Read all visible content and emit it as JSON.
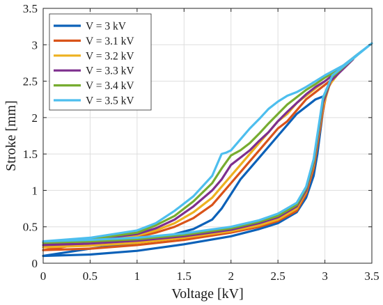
{
  "chart_data": {
    "type": "line",
    "title": "",
    "xlabel": "Voltage [kV]",
    "ylabel": "Stroke [mm]",
    "xlim": [
      0,
      3.5
    ],
    "ylim": [
      0,
      3.5
    ],
    "xticks": [
      0,
      0.5,
      1,
      1.5,
      2,
      2.5,
      3,
      3.5
    ],
    "yticks": [
      0,
      0.5,
      1,
      1.5,
      2,
      2.5,
      3,
      3.5
    ],
    "xtick_labels": [
      "0",
      "0.5",
      "1",
      "1.5",
      "2",
      "2.5",
      "3",
      "3.5"
    ],
    "ytick_labels": [
      "0",
      "0.5",
      "1",
      "1.5",
      "2",
      "2.5",
      "3",
      "3.5"
    ],
    "grid": true,
    "legend_position": "top-left",
    "series": [
      {
        "name": "V = 3 kV",
        "color": "#0c61b8",
        "x": [
          0,
          0.5,
          1,
          1.5,
          2,
          2.3,
          2.5,
          2.7,
          2.8,
          2.88,
          2.92,
          2.95,
          2.98,
          3.0,
          2.9,
          2.8,
          2.7,
          2.6,
          2.5,
          2.4,
          2.3,
          2.2,
          2.1,
          2.0,
          1.9,
          1.8,
          1.6,
          1.4,
          1.2,
          1.0,
          0.5,
          0
        ],
        "y": [
          0.1,
          0.12,
          0.17,
          0.26,
          0.37,
          0.47,
          0.55,
          0.7,
          0.9,
          1.2,
          1.5,
          1.8,
          2.1,
          2.3,
          2.25,
          2.15,
          2.05,
          1.9,
          1.75,
          1.6,
          1.45,
          1.3,
          1.15,
          0.95,
          0.75,
          0.6,
          0.47,
          0.4,
          0.33,
          0.28,
          0.2,
          0.1
        ]
      },
      {
        "name": "V = 3.1 kV",
        "color": "#d95319",
        "x": [
          0,
          0.5,
          1,
          1.5,
          2,
          2.3,
          2.5,
          2.7,
          2.8,
          2.88,
          2.93,
          2.98,
          3.03,
          3.1,
          3.0,
          2.9,
          2.8,
          2.7,
          2.6,
          2.5,
          2.4,
          2.3,
          2.2,
          2.1,
          2.0,
          1.9,
          1.8,
          1.6,
          1.4,
          1.2,
          1.0,
          0.5,
          0
        ],
        "y": [
          0.18,
          0.2,
          0.25,
          0.32,
          0.42,
          0.5,
          0.58,
          0.72,
          0.95,
          1.3,
          1.7,
          2.1,
          2.4,
          2.55,
          2.45,
          2.35,
          2.25,
          2.1,
          1.95,
          1.85,
          1.7,
          1.55,
          1.4,
          1.25,
          1.1,
          0.95,
          0.8,
          0.62,
          0.5,
          0.42,
          0.36,
          0.28,
          0.18
        ]
      },
      {
        "name": "V = 3.2 kV",
        "color": "#edb120",
        "x": [
          0,
          0.5,
          1,
          1.5,
          2,
          2.3,
          2.5,
          2.7,
          2.8,
          2.88,
          2.93,
          2.98,
          3.05,
          3.2,
          3.1,
          3.0,
          2.9,
          2.8,
          2.7,
          2.6,
          2.5,
          2.4,
          2.3,
          2.2,
          2.1,
          2.0,
          1.9,
          1.8,
          1.6,
          1.4,
          1.2,
          1.0,
          0.5,
          0
        ],
        "y": [
          0.22,
          0.24,
          0.28,
          0.35,
          0.44,
          0.52,
          0.6,
          0.75,
          0.98,
          1.35,
          1.75,
          2.15,
          2.45,
          2.7,
          2.6,
          2.5,
          2.4,
          2.3,
          2.2,
          2.05,
          1.95,
          1.8,
          1.65,
          1.5,
          1.35,
          1.2,
          1.05,
          0.9,
          0.7,
          0.55,
          0.45,
          0.38,
          0.3,
          0.22
        ]
      },
      {
        "name": "V = 3.3 kV",
        "color": "#7e2f8e",
        "x": [
          0,
          0.5,
          1,
          1.5,
          2,
          2.3,
          2.5,
          2.7,
          2.8,
          2.88,
          2.93,
          2.98,
          3.06,
          3.3,
          3.2,
          3.1,
          3.0,
          2.9,
          2.8,
          2.7,
          2.6,
          2.5,
          2.4,
          2.3,
          2.2,
          2.1,
          2.0,
          1.9,
          1.8,
          1.6,
          1.4,
          1.2,
          1.0,
          0.5,
          0
        ],
        "y": [
          0.25,
          0.27,
          0.31,
          0.37,
          0.46,
          0.55,
          0.63,
          0.78,
          1.0,
          1.38,
          1.78,
          2.2,
          2.5,
          2.8,
          2.7,
          2.6,
          2.5,
          2.42,
          2.32,
          2.2,
          2.08,
          1.95,
          1.8,
          1.68,
          1.55,
          1.45,
          1.35,
          1.15,
          1.0,
          0.78,
          0.6,
          0.48,
          0.4,
          0.32,
          0.25
        ]
      },
      {
        "name": "V = 3.4 kV",
        "color": "#77ac30",
        "x": [
          0,
          0.5,
          1,
          1.5,
          2,
          2.3,
          2.5,
          2.7,
          2.8,
          2.88,
          2.93,
          2.98,
          3.07,
          3.4,
          3.3,
          3.2,
          3.1,
          3.0,
          2.9,
          2.8,
          2.7,
          2.6,
          2.5,
          2.4,
          2.3,
          2.2,
          2.1,
          2.0,
          1.9,
          1.8,
          1.6,
          1.4,
          1.2,
          1.0,
          0.5,
          0
        ],
        "y": [
          0.28,
          0.3,
          0.33,
          0.39,
          0.48,
          0.57,
          0.65,
          0.8,
          1.03,
          1.4,
          1.82,
          2.25,
          2.55,
          2.92,
          2.82,
          2.72,
          2.62,
          2.55,
          2.46,
          2.38,
          2.28,
          2.18,
          2.05,
          1.92,
          1.78,
          1.65,
          1.55,
          1.48,
          1.3,
          1.1,
          0.85,
          0.65,
          0.52,
          0.42,
          0.33,
          0.28
        ]
      },
      {
        "name": "V = 3.5 kV",
        "color": "#4dbeee",
        "x": [
          0,
          0.5,
          1,
          1.5,
          2,
          2.3,
          2.5,
          2.7,
          2.8,
          2.88,
          2.93,
          2.98,
          3.08,
          3.5,
          3.4,
          3.3,
          3.2,
          3.1,
          3.0,
          2.9,
          2.8,
          2.7,
          2.6,
          2.5,
          2.4,
          2.3,
          2.2,
          2.1,
          2.0,
          1.95,
          1.9,
          1.8,
          1.6,
          1.4,
          1.2,
          1.0,
          0.5,
          0
        ],
        "y": [
          0.3,
          0.32,
          0.35,
          0.41,
          0.5,
          0.59,
          0.68,
          0.83,
          1.05,
          1.43,
          1.85,
          2.28,
          2.58,
          3.02,
          2.92,
          2.82,
          2.72,
          2.65,
          2.58,
          2.5,
          2.42,
          2.35,
          2.3,
          2.22,
          2.12,
          1.98,
          1.85,
          1.7,
          1.55,
          1.52,
          1.5,
          1.2,
          0.92,
          0.72,
          0.55,
          0.45,
          0.35,
          0.3
        ]
      }
    ]
  }
}
